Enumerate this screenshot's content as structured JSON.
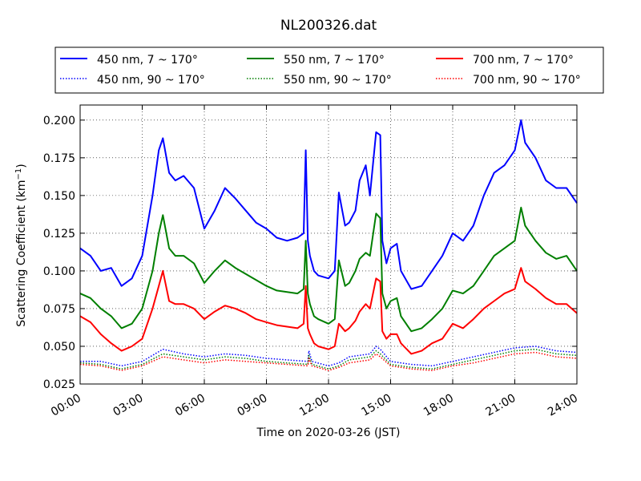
{
  "chart_data": {
    "type": "line",
    "title": "NL200326.dat",
    "xlabel": "Time on 2020-03-26 (JST)",
    "ylabel": "Scattering Coefficient (km",
    "ylabel_sup": "−1",
    "ylabel_close": ")",
    "xlim": [
      "2020-03-26 00:00",
      "2020-03-27 00:00"
    ],
    "ylim": [
      0.025,
      0.21
    ],
    "x_ticks": [
      "00:00",
      "03:00",
      "06:00",
      "09:00",
      "12:00",
      "15:00",
      "18:00",
      "21:00",
      "24:00"
    ],
    "y_ticks": [
      "0.025",
      "0.050",
      "0.075",
      "0.100",
      "0.125",
      "0.150",
      "0.175",
      "0.200"
    ],
    "grid": true,
    "legend_placement": "top, above plot (3 columns)",
    "x_unit": "hours since 2020-03-26 00:00 JST",
    "series": [
      {
        "name": "450 nm, 7 ~ 170°",
        "color": "#0000ff",
        "style": "solid",
        "x": [
          0,
          0.5,
          1,
          1.5,
          2,
          2.5,
          3,
          3.5,
          3.8,
          4,
          4.3,
          4.6,
          5,
          5.5,
          6,
          6.5,
          7,
          7.5,
          8,
          8.5,
          9,
          9.5,
          10,
          10.5,
          10.8,
          10.9,
          11,
          11.1,
          11.3,
          11.5,
          12,
          12.3,
          12.5,
          12.8,
          13,
          13.3,
          13.5,
          13.8,
          14,
          14.3,
          14.5,
          14.6,
          14.8,
          15,
          15.3,
          15.5,
          16,
          16.5,
          17,
          17.5,
          18,
          18.5,
          19,
          19.5,
          20,
          20.5,
          21,
          21.3,
          21.5,
          22,
          22.5,
          23,
          23.5,
          24
        ],
        "y": [
          0.115,
          0.11,
          0.1,
          0.102,
          0.09,
          0.095,
          0.11,
          0.15,
          0.18,
          0.188,
          0.165,
          0.16,
          0.163,
          0.155,
          0.128,
          0.14,
          0.155,
          0.148,
          0.14,
          0.132,
          0.128,
          0.122,
          0.12,
          0.122,
          0.125,
          0.18,
          0.12,
          0.11,
          0.1,
          0.097,
          0.095,
          0.1,
          0.152,
          0.13,
          0.132,
          0.14,
          0.16,
          0.17,
          0.15,
          0.192,
          0.19,
          0.12,
          0.105,
          0.115,
          0.118,
          0.1,
          0.088,
          0.09,
          0.1,
          0.11,
          0.125,
          0.12,
          0.13,
          0.15,
          0.165,
          0.17,
          0.18,
          0.2,
          0.185,
          0.175,
          0.16,
          0.155,
          0.155,
          0.145
        ]
      },
      {
        "name": "550 nm, 7 ~ 170°",
        "color": "#007f00",
        "style": "solid",
        "x": [
          0,
          0.5,
          1,
          1.5,
          2,
          2.5,
          3,
          3.5,
          3.8,
          4,
          4.3,
          4.6,
          5,
          5.5,
          6,
          6.5,
          7,
          7.5,
          8,
          8.5,
          9,
          9.5,
          10,
          10.5,
          10.8,
          10.9,
          11,
          11.1,
          11.3,
          11.5,
          12,
          12.3,
          12.5,
          12.8,
          13,
          13.3,
          13.5,
          13.8,
          14,
          14.3,
          14.5,
          14.6,
          14.8,
          15,
          15.3,
          15.5,
          16,
          16.5,
          17,
          17.5,
          18,
          18.5,
          19,
          19.5,
          20,
          20.5,
          21,
          21.3,
          21.5,
          22,
          22.5,
          23,
          23.5,
          24
        ],
        "y": [
          0.085,
          0.082,
          0.075,
          0.07,
          0.062,
          0.065,
          0.075,
          0.1,
          0.125,
          0.137,
          0.115,
          0.11,
          0.11,
          0.105,
          0.092,
          0.1,
          0.107,
          0.102,
          0.098,
          0.094,
          0.09,
          0.087,
          0.086,
          0.085,
          0.088,
          0.12,
          0.085,
          0.078,
          0.07,
          0.068,
          0.065,
          0.068,
          0.107,
          0.09,
          0.092,
          0.1,
          0.108,
          0.112,
          0.11,
          0.138,
          0.135,
          0.085,
          0.075,
          0.08,
          0.082,
          0.07,
          0.06,
          0.062,
          0.068,
          0.075,
          0.087,
          0.085,
          0.09,
          0.1,
          0.11,
          0.115,
          0.12,
          0.142,
          0.13,
          0.12,
          0.112,
          0.108,
          0.11,
          0.1
        ]
      },
      {
        "name": "700 nm, 7 ~ 170°",
        "color": "#ff0000",
        "style": "solid",
        "x": [
          0,
          0.5,
          1,
          1.5,
          2,
          2.5,
          3,
          3.5,
          3.8,
          4,
          4.3,
          4.6,
          5,
          5.5,
          6,
          6.5,
          7,
          7.5,
          8,
          8.5,
          9,
          9.5,
          10,
          10.5,
          10.8,
          10.9,
          11,
          11.1,
          11.3,
          11.5,
          12,
          12.3,
          12.5,
          12.8,
          13,
          13.3,
          13.5,
          13.8,
          14,
          14.3,
          14.5,
          14.6,
          14.8,
          15,
          15.3,
          15.5,
          16,
          16.5,
          17,
          17.5,
          18,
          18.5,
          19,
          19.5,
          20,
          20.5,
          21,
          21.3,
          21.5,
          22,
          22.5,
          23,
          23.5,
          24
        ],
        "y": [
          0.07,
          0.066,
          0.058,
          0.052,
          0.047,
          0.05,
          0.055,
          0.075,
          0.09,
          0.1,
          0.08,
          0.078,
          0.078,
          0.075,
          0.068,
          0.073,
          0.077,
          0.075,
          0.072,
          0.068,
          0.066,
          0.064,
          0.063,
          0.062,
          0.065,
          0.09,
          0.062,
          0.058,
          0.052,
          0.05,
          0.048,
          0.05,
          0.065,
          0.06,
          0.062,
          0.067,
          0.073,
          0.078,
          0.075,
          0.095,
          0.093,
          0.06,
          0.055,
          0.058,
          0.058,
          0.052,
          0.045,
          0.047,
          0.052,
          0.055,
          0.065,
          0.062,
          0.068,
          0.075,
          0.08,
          0.085,
          0.088,
          0.102,
          0.093,
          0.088,
          0.082,
          0.078,
          0.078,
          0.072
        ]
      },
      {
        "name": "450 nm, 90 ~ 170°",
        "color": "#0000ff",
        "style": "dotted",
        "x": [
          0,
          1,
          2,
          3,
          4,
          5,
          6,
          7,
          8,
          9,
          10,
          11,
          11.05,
          11.2,
          12,
          12.5,
          13,
          14,
          14.3,
          14.5,
          15,
          16,
          17,
          18,
          19,
          20,
          21,
          22,
          23,
          24
        ],
        "y": [
          0.04,
          0.04,
          0.037,
          0.04,
          0.048,
          0.045,
          0.043,
          0.045,
          0.044,
          0.042,
          0.041,
          0.04,
          0.047,
          0.04,
          0.037,
          0.039,
          0.043,
          0.045,
          0.05,
          0.048,
          0.04,
          0.038,
          0.037,
          0.04,
          0.043,
          0.046,
          0.049,
          0.05,
          0.047,
          0.046
        ]
      },
      {
        "name": "550 nm, 90 ~ 170°",
        "color": "#007f00",
        "style": "dotted",
        "x": [
          0,
          1,
          2,
          3,
          4,
          5,
          6,
          7,
          8,
          9,
          10,
          11,
          11.05,
          11.2,
          12,
          12.5,
          13,
          14,
          14.3,
          14.5,
          15,
          16,
          17,
          18,
          19,
          20,
          21,
          22,
          23,
          24
        ],
        "y": [
          0.039,
          0.038,
          0.035,
          0.038,
          0.045,
          0.043,
          0.041,
          0.043,
          0.042,
          0.04,
          0.039,
          0.038,
          0.044,
          0.038,
          0.035,
          0.037,
          0.041,
          0.043,
          0.047,
          0.045,
          0.038,
          0.036,
          0.035,
          0.038,
          0.041,
          0.044,
          0.047,
          0.048,
          0.045,
          0.044
        ]
      },
      {
        "name": "700 nm, 90 ~ 170°",
        "color": "#ff0000",
        "style": "dotted",
        "x": [
          0,
          1,
          2,
          3,
          4,
          5,
          6,
          7,
          8,
          9,
          10,
          11,
          11.05,
          11.2,
          12,
          12.5,
          13,
          14,
          14.3,
          14.5,
          15,
          16,
          17,
          18,
          19,
          20,
          21,
          22,
          23,
          24
        ],
        "y": [
          0.038,
          0.037,
          0.034,
          0.037,
          0.043,
          0.041,
          0.039,
          0.041,
          0.04,
          0.039,
          0.038,
          0.037,
          0.042,
          0.037,
          0.034,
          0.036,
          0.039,
          0.041,
          0.045,
          0.043,
          0.037,
          0.035,
          0.034,
          0.037,
          0.039,
          0.042,
          0.045,
          0.046,
          0.043,
          0.042
        ]
      }
    ]
  }
}
